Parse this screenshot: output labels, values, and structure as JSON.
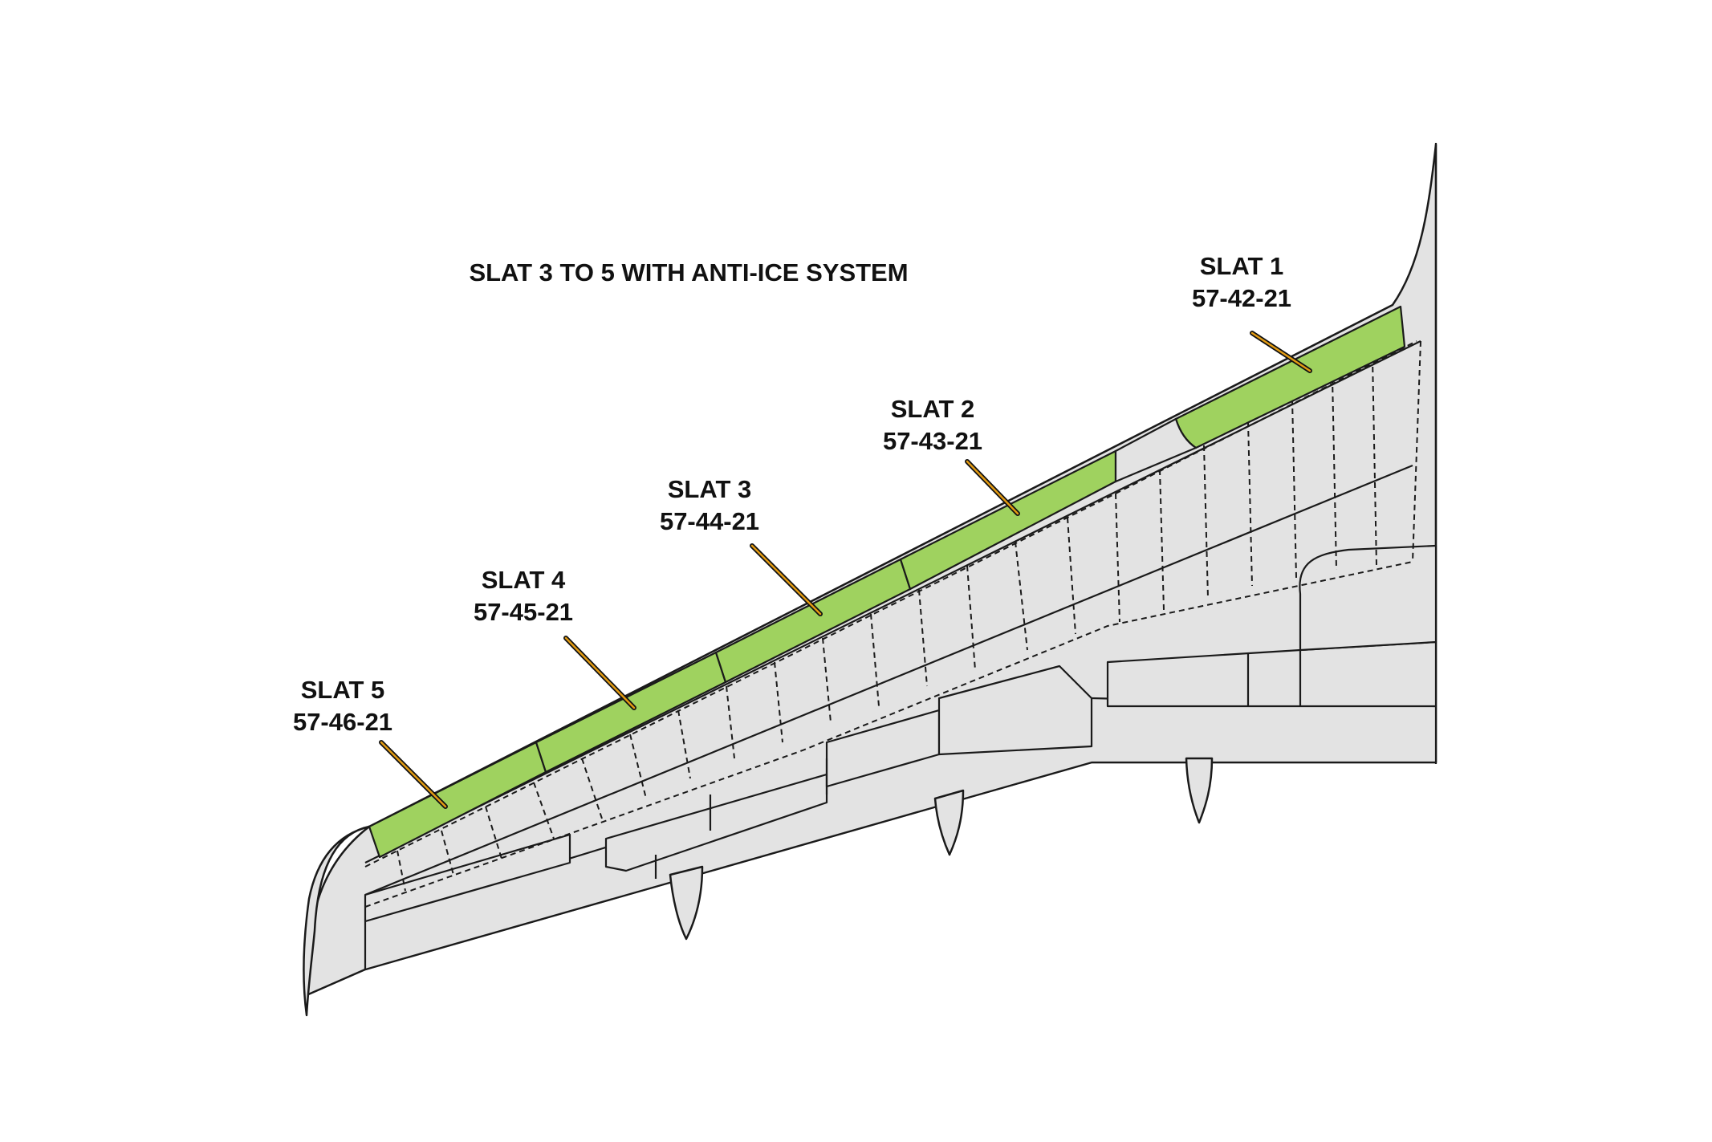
{
  "diagram": {
    "title": "SLAT 3 TO 5 WITH ANTI-ICE SYSTEM",
    "highlight_color": "#9fd25f",
    "structure_color": "#e3e3e3",
    "slats": [
      {
        "name": "SLAT 1",
        "ref": "57-42-21"
      },
      {
        "name": "SLAT 2",
        "ref": "57-43-21"
      },
      {
        "name": "SLAT 3",
        "ref": "57-44-21"
      },
      {
        "name": "SLAT 4",
        "ref": "57-45-21"
      },
      {
        "name": "SLAT 5",
        "ref": "57-46-21"
      }
    ]
  }
}
